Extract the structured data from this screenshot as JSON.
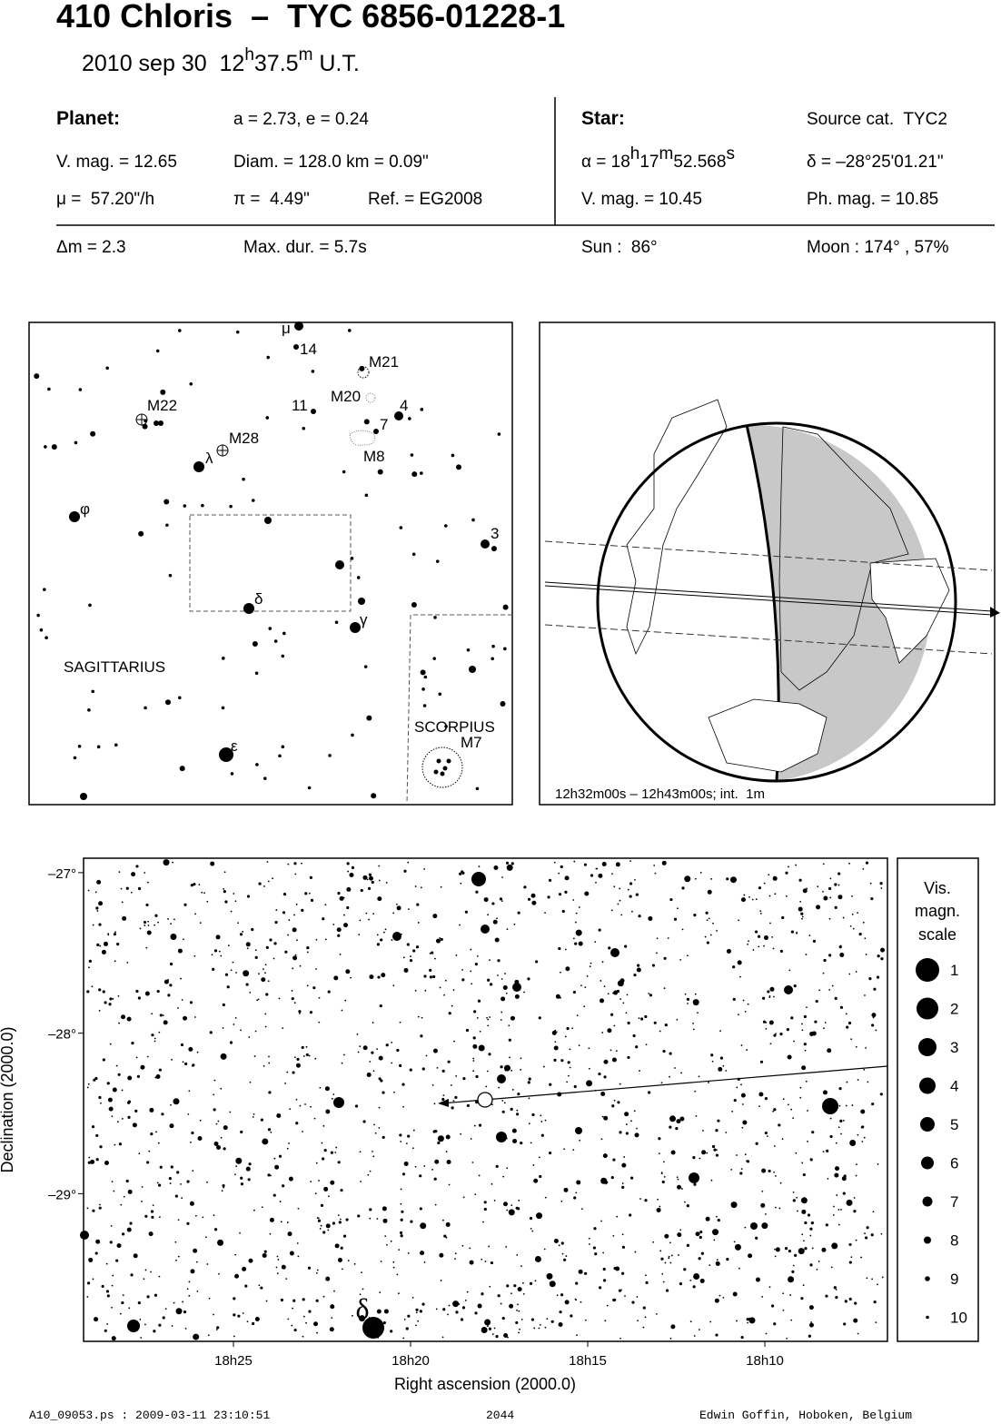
{
  "header": {
    "title": "410 Chloris  –  TYC 6856-01228-1",
    "date": [
      "2010 sep 30  12",
      "h",
      "37.5",
      "m",
      " U.T."
    ]
  },
  "planet": {
    "label": "Planet:",
    "orbit": "a = 2.73, e = 0.24",
    "vmag": "V. mag. = 12.65",
    "diam": "Diam. = 128.0 km = 0.09\"",
    "motion": "μ =  57.20\"/h",
    "parallax": "π =  4.49\"",
    "ref": "Ref. = EG2008"
  },
  "star": {
    "label": "Star:",
    "source": "Source cat.  TYC2",
    "ra": [
      "α = 18",
      "h",
      "17",
      "m",
      "52.568",
      "s"
    ],
    "dec": "δ = –28°25'01.21\"",
    "vmag": "V. mag. = 10.45",
    "phmag": "Ph. mag. = 10.85"
  },
  "event": {
    "dmag": "Δm = 2.3",
    "maxdur": "Max. dur. = 5.7s",
    "sun": "Sun :  86°",
    "moon": "Moon : 174° , 57%"
  },
  "finder_chart": {
    "labels": [
      "μ",
      "14",
      "M21",
      "M20",
      "4",
      "11",
      "7",
      "M8",
      "M22",
      "λ",
      "M28",
      "φ",
      "3",
      "δ",
      "γ",
      "SAGITTARIUS",
      "SCORPIUS",
      "M7",
      "ε"
    ]
  },
  "globe": {
    "caption": "12h32m00s – 12h43m00s; int.  1m"
  },
  "star_chart": {
    "xlim": [
      29.23,
      6.54
    ],
    "ylim": [
      -29.92,
      -26.91
    ],
    "xticks": [
      {
        "value": 25,
        "label": "18h25"
      },
      {
        "value": 20,
        "label": "18h20"
      },
      {
        "value": 15,
        "label": "18h15"
      },
      {
        "value": 10,
        "label": "18h10"
      }
    ],
    "yticks": [
      {
        "value": -27,
        "label": "–27°"
      },
      {
        "value": -28,
        "label": "–28°"
      },
      {
        "value": -29,
        "label": "–29°"
      }
    ],
    "xlabel": "Right ascension (2000.0)",
    "ylabel": "Declination (2000.0)",
    "star_label": "δ",
    "legend": {
      "title": [
        "Vis.",
        "magn.",
        "scale"
      ],
      "magnitudes": [
        1,
        2,
        3,
        4,
        5,
        6,
        7,
        8,
        9,
        10
      ]
    }
  },
  "footer": {
    "file": "A10_09053.ps : 2009-03-11 23:10:51",
    "number": "2044",
    "author": "Edwin Goffin, Hoboken, Belgium"
  }
}
